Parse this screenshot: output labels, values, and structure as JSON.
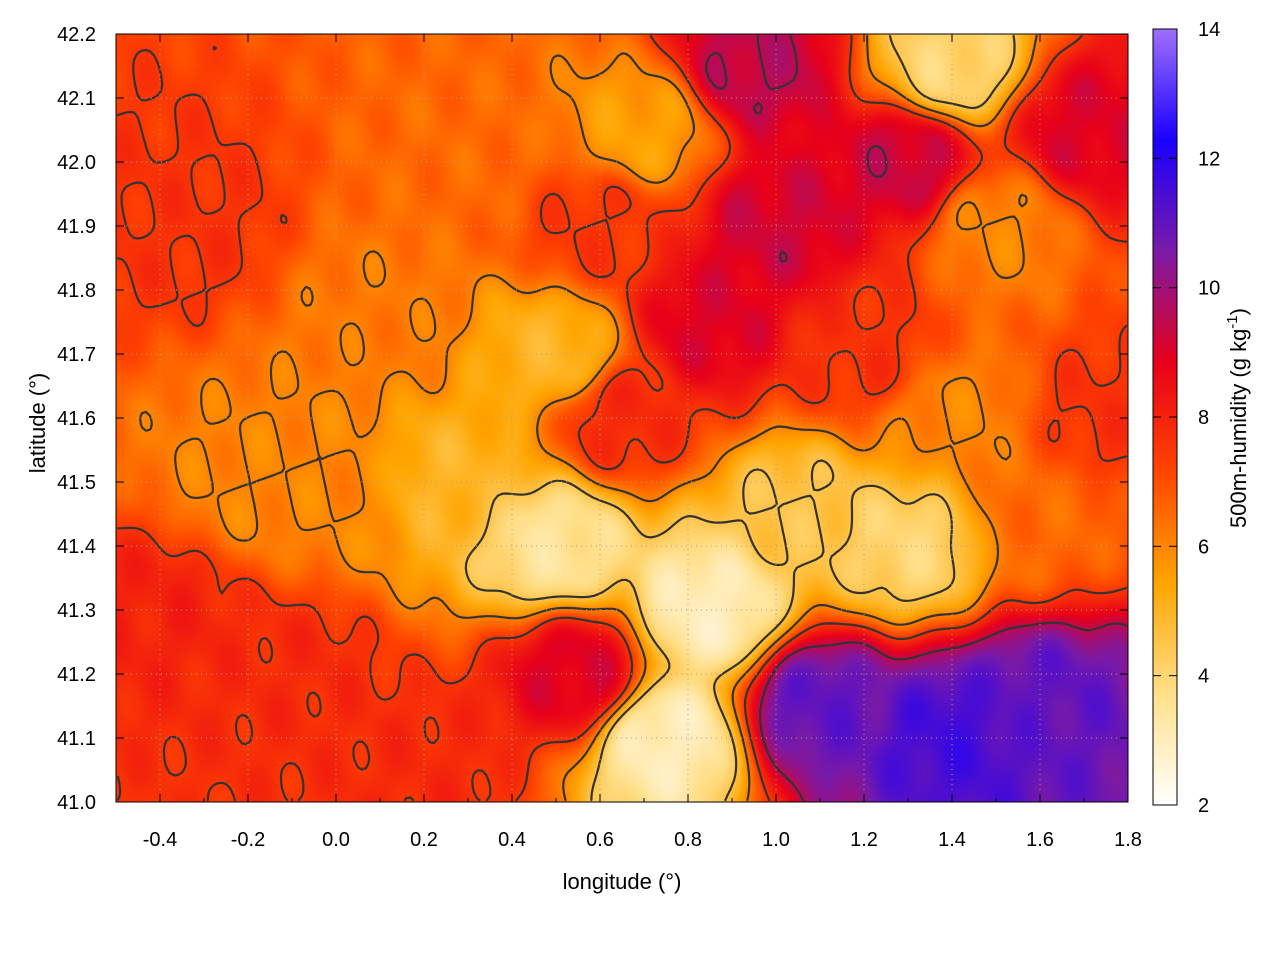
{
  "chart_data": {
    "type": "heatmap",
    "title": "",
    "xlabel": "longitude (°)",
    "ylabel": "latitude (°)",
    "colorbar_label_main": "500m-humidity (g kg",
    "colorbar_label_exp": "-1",
    "colorbar_label_close": ")",
    "xlim": [
      -0.5,
      1.8
    ],
    "ylim": [
      41.0,
      42.2
    ],
    "x_ticks": [
      "-0.4",
      "-0.2",
      "0.0",
      "0.2",
      "0.4",
      "0.6",
      "0.8",
      "1.0",
      "1.2",
      "1.4",
      "1.6",
      "1.8"
    ],
    "y_ticks": [
      "41.0",
      "41.1",
      "41.2",
      "41.3",
      "41.4",
      "41.5",
      "41.6",
      "41.7",
      "41.8",
      "41.9",
      "42.0",
      "42.1",
      "42.2"
    ],
    "colorbar_range": [
      2,
      14
    ],
    "colorbar_ticks": [
      "2",
      "4",
      "6",
      "8",
      "10",
      "12",
      "14"
    ],
    "colormap": [
      "#ffffff",
      "#ffe08a",
      "#ffa500",
      "#ff4500",
      "#e8001a",
      "#7a1aa8",
      "#1a00ff",
      "#a070ff"
    ],
    "grid": true,
    "contours": true,
    "regions_approx": [
      {
        "lon": 1.4,
        "lat": 41.1,
        "value": 11.5
      },
      {
        "lon": 1.6,
        "lat": 41.15,
        "value": 11.0
      },
      {
        "lon": 1.1,
        "lat": 41.15,
        "value": 11.0
      },
      {
        "lon": 0.85,
        "lat": 41.3,
        "value": 3.0
      },
      {
        "lon": 0.75,
        "lat": 41.1,
        "value": 3.0
      },
      {
        "lon": 0.5,
        "lat": 41.4,
        "value": 3.5
      },
      {
        "lon": 1.3,
        "lat": 41.4,
        "value": 4.0
      },
      {
        "lon": 1.05,
        "lat": 41.45,
        "value": 4.5
      },
      {
        "lon": 0.25,
        "lat": 41.5,
        "value": 5.0
      },
      {
        "lon": 0.5,
        "lat": 41.7,
        "value": 5.0
      },
      {
        "lon": 1.4,
        "lat": 42.15,
        "value": 4.0
      },
      {
        "lon": 1.5,
        "lat": 41.9,
        "value": 6.0
      },
      {
        "lon": 0.0,
        "lat": 41.5,
        "value": 6.0
      },
      {
        "lon": -0.2,
        "lat": 41.5,
        "value": 6.0
      },
      {
        "lon": 0.1,
        "lat": 41.75,
        "value": 6.2
      },
      {
        "lon": 0.3,
        "lat": 42.0,
        "value": 6.5
      },
      {
        "lon": 0.7,
        "lat": 42.05,
        "value": 5.5
      },
      {
        "lon": 1.6,
        "lat": 41.45,
        "value": 6.5
      },
      {
        "lon": 1.4,
        "lat": 41.6,
        "value": 6.0
      },
      {
        "lon": 1.0,
        "lat": 41.9,
        "value": 9.2
      },
      {
        "lon": 1.3,
        "lat": 42.0,
        "value": 9.3
      },
      {
        "lon": 0.85,
        "lat": 41.75,
        "value": 9.0
      },
      {
        "lon": 0.95,
        "lat": 42.15,
        "value": 9.5
      },
      {
        "lon": 0.55,
        "lat": 41.2,
        "value": 9.0
      },
      {
        "lon": 1.7,
        "lat": 42.05,
        "value": 9.0
      },
      {
        "lon": -0.4,
        "lat": 41.3,
        "value": 8.0
      },
      {
        "lon": -0.35,
        "lat": 41.9,
        "value": 7.6
      },
      {
        "lon": -0.1,
        "lat": 41.2,
        "value": 7.8
      },
      {
        "lon": 0.2,
        "lat": 41.05,
        "value": 7.8
      },
      {
        "lon": 0.65,
        "lat": 41.6,
        "value": 7.8
      },
      {
        "lon": 1.2,
        "lat": 41.7,
        "value": 7.6
      },
      {
        "lon": 1.75,
        "lat": 41.6,
        "value": 7.6
      },
      {
        "lon": 0.6,
        "lat": 41.9,
        "value": 7.5
      }
    ]
  }
}
